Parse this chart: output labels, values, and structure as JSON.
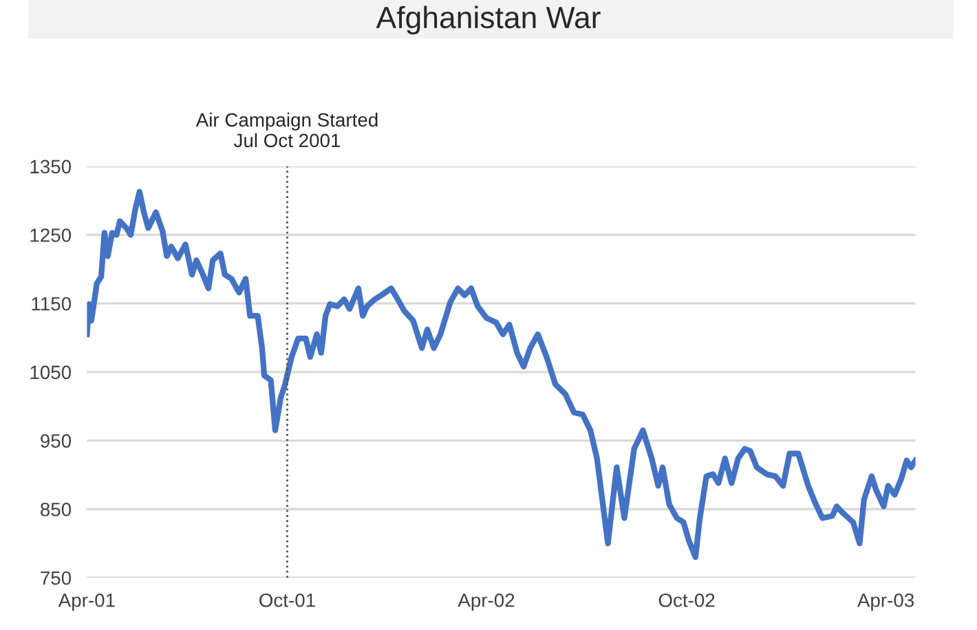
{
  "chart_data": {
    "type": "line",
    "title": "Afghanistan War",
    "x": [
      "2001-04-01",
      "2001-04-03",
      "2001-04-05",
      "2001-04-07",
      "2001-04-10",
      "2001-04-14",
      "2001-04-17",
      "2001-04-20",
      "2001-04-24",
      "2001-04-28",
      "2001-05-01",
      "2001-05-07",
      "2001-05-11",
      "2001-05-15",
      "2001-05-19",
      "2001-05-23",
      "2001-05-27",
      "2001-06-03",
      "2001-06-09",
      "2001-06-13",
      "2001-06-17",
      "2001-06-23",
      "2001-06-30",
      "2001-07-06",
      "2001-07-10",
      "2001-07-16",
      "2001-07-21",
      "2001-07-25",
      "2001-08-01",
      "2001-08-05",
      "2001-08-11",
      "2001-08-18",
      "2001-08-24",
      "2001-08-28",
      "2001-09-04",
      "2001-09-08",
      "2001-09-10",
      "2001-09-16",
      "2001-09-20",
      "2001-09-25",
      "2001-09-29",
      "2001-10-05",
      "2001-10-11",
      "2001-10-18",
      "2001-10-22",
      "2001-10-28",
      "2001-11-01",
      "2001-11-05",
      "2001-11-09",
      "2001-11-16",
      "2001-11-22",
      "2001-11-27",
      "2001-12-05",
      "2001-12-09",
      "2001-12-13",
      "2001-12-20",
      "2001-12-26",
      "2002-01-04",
      "2002-01-10",
      "2002-01-16",
      "2002-01-24",
      "2002-02-01",
      "2002-02-06",
      "2002-02-12",
      "2002-02-18",
      "2002-02-27",
      "2002-03-06",
      "2002-03-12",
      "2002-03-18",
      "2002-03-24",
      "2002-04-01",
      "2002-04-10",
      "2002-04-16",
      "2002-04-22",
      "2002-04-29",
      "2002-05-05",
      "2002-05-11",
      "2002-05-18",
      "2002-05-26",
      "2002-06-03",
      "2002-06-12",
      "2002-06-20",
      "2002-06-28",
      "2002-07-05",
      "2002-07-11",
      "2002-07-21",
      "2002-07-29",
      "2002-08-05",
      "2002-08-14",
      "2002-08-22",
      "2002-08-30",
      "2002-09-05",
      "2002-09-09",
      "2002-09-15",
      "2002-09-22",
      "2002-09-28",
      "2002-10-03",
      "2002-10-09",
      "2002-10-13",
      "2002-10-19",
      "2002-10-25",
      "2002-10-30",
      "2002-11-05",
      "2002-11-11",
      "2002-11-17",
      "2002-11-23",
      "2002-11-28",
      "2002-12-04",
      "2002-12-13",
      "2002-12-21",
      "2002-12-28",
      "2003-01-03",
      "2003-01-11",
      "2003-01-20",
      "2003-01-27",
      "2003-02-02",
      "2003-02-11",
      "2003-02-15",
      "2003-02-21",
      "2003-03-02",
      "2003-03-08",
      "2003-03-12",
      "2003-03-19",
      "2003-03-23",
      "2003-03-30",
      "2003-04-03",
      "2003-04-09",
      "2003-04-15",
      "2003-04-20",
      "2003-04-24",
      "2003-04-28"
    ],
    "series": [
      {
        "color": "#4472c4",
        "values": [
          1105,
          1149,
          1125,
          1146,
          1179,
          1189,
          1253,
          1219,
          1253,
          1250,
          1270,
          1260,
          1250,
          1286,
          1313,
          1283,
          1260,
          1283,
          1256,
          1219,
          1233,
          1216,
          1236,
          1192,
          1213,
          1192,
          1172,
          1213,
          1223,
          1192,
          1186,
          1166,
          1186,
          1132,
          1132,
          1085,
          1045,
          1038,
          965,
          1012,
          1032,
          1072,
          1099,
          1099,
          1072,
          1105,
          1078,
          1132,
          1149,
          1146,
          1156,
          1142,
          1172,
          1132,
          1146,
          1156,
          1162,
          1172,
          1156,
          1139,
          1125,
          1085,
          1112,
          1085,
          1105,
          1152,
          1172,
          1162,
          1172,
          1146,
          1129,
          1122,
          1105,
          1119,
          1078,
          1058,
          1085,
          1105,
          1072,
          1032,
          1018,
          991,
          988,
          965,
          924,
          800,
          911,
          837,
          938,
          965,
          924,
          884,
          911,
          857,
          837,
          831,
          804,
          780,
          837,
          898,
          901,
          888,
          924,
          888,
          924,
          938,
          935,
          911,
          901,
          898,
          884,
          931,
          931,
          884,
          857,
          837,
          840,
          854,
          844,
          831,
          800,
          864,
          898,
          878,
          854,
          884,
          871,
          894,
          921,
          911,
          921
        ]
      }
    ],
    "xlim": [
      "2001-04-01",
      "2003-04-28"
    ],
    "xticks": [
      {
        "value": "2001-04-01",
        "label": "Apr-01"
      },
      {
        "value": "2001-10-01",
        "label": "Oct-01"
      },
      {
        "value": "2002-04-01",
        "label": "Apr-02"
      },
      {
        "value": "2002-10-01",
        "label": "Oct-02"
      },
      {
        "value": "2003-04-01",
        "label": "Apr-03"
      }
    ],
    "ylim": [
      750,
      1350
    ],
    "yticks": [
      750,
      850,
      950,
      1050,
      1150,
      1250,
      1350
    ],
    "grid": "y",
    "line_style": "solid",
    "ref_lines": [
      {
        "axis": "x",
        "value": "2001-10-01",
        "label": "Air Campaign Started\nJul Oct 2001",
        "color": "#555555",
        "line_style": "dotted"
      }
    ]
  }
}
